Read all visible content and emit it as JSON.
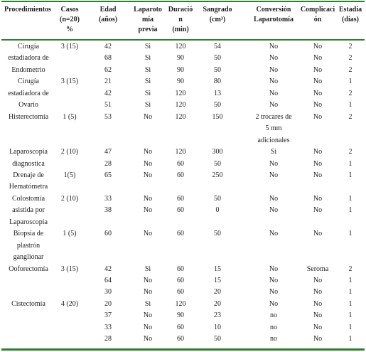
{
  "columns": [
    {
      "lines": [
        "Procedimientos"
      ]
    },
    {
      "lines": [
        "Casos",
        "(n=20)",
        "%"
      ]
    },
    {
      "lines": [
        "Edad",
        "(años)"
      ]
    },
    {
      "lines": [
        "Laparoto",
        "mía",
        "previa"
      ]
    },
    {
      "lines": [
        "Duració",
        "n",
        "(min)"
      ]
    },
    {
      "lines": [
        "Sangrado",
        "(cm³)"
      ]
    },
    {
      "lines": [
        "Conversión",
        "Laparotomía"
      ]
    },
    {
      "lines": [
        "Complicaci",
        "ón"
      ]
    },
    {
      "lines": [
        "Estadía",
        "(días)"
      ]
    }
  ],
  "rows": [
    [
      "Cirugía",
      "3 (15)",
      "42",
      "Si",
      "120",
      "54",
      "No",
      "No",
      "2"
    ],
    [
      "estadiadora de",
      "",
      "68",
      "Si",
      "90",
      "50",
      "No",
      "No",
      "2"
    ],
    [
      "Endometrio",
      "",
      "62",
      "Si",
      "90",
      "50",
      "No",
      "No",
      "2"
    ],
    [
      "Cirugía",
      "3 (15)",
      "21",
      "Si",
      "90",
      "80",
      "No",
      "No",
      "1"
    ],
    [
      "estadiadora de",
      "",
      "42",
      "Si",
      "120",
      "13",
      "No",
      "No",
      "2"
    ],
    [
      "Ovario",
      "",
      "51",
      "Si",
      "120",
      "50",
      "No",
      "No",
      "1"
    ],
    [
      "Histerectomía",
      "1 (5)",
      "53",
      "No",
      "120",
      "150",
      "2 trocares de",
      "No",
      "2"
    ],
    [
      "",
      "",
      "",
      "",
      "",
      "",
      "5 mm",
      "",
      ""
    ],
    [
      "",
      "",
      "",
      "",
      "",
      "",
      "adicionales",
      "",
      ""
    ],
    [
      "Laparoscopia",
      "2 (10)",
      "47",
      "No",
      "120",
      "300",
      "Si",
      "No",
      "2"
    ],
    [
      "diagnostica",
      "",
      "28",
      "No",
      "60",
      "50",
      "No",
      "No",
      "1"
    ],
    [
      "Drenaje de",
      "1(5)",
      "65",
      "No",
      "60",
      "250",
      "No",
      "No",
      "1"
    ],
    [
      "Hematómetra",
      "",
      "",
      "",
      "",
      "",
      "",
      "",
      ""
    ],
    [
      "Colostomía",
      "2 (10)",
      "33",
      "No",
      "60",
      "50",
      "No",
      "No",
      "1"
    ],
    [
      "asistida por",
      "",
      "38",
      "No",
      "60",
      "0",
      "No",
      "No",
      "1"
    ],
    [
      "Laparoscopia",
      "",
      "",
      "",
      "",
      "",
      "",
      "",
      ""
    ],
    [
      "Biopsia de",
      "1 (5)",
      "60",
      "No",
      "60",
      "50",
      "No",
      "No",
      "1"
    ],
    [
      "plastrón",
      "",
      "",
      "",
      "",
      "",
      "",
      "",
      ""
    ],
    [
      "ganglionar",
      "",
      "",
      "",
      "",
      "",
      "",
      "",
      ""
    ],
    [
      "Ooforectomía",
      "3 (15)",
      "42",
      "Si",
      "60",
      "15",
      "No",
      "Seroma",
      "2"
    ],
    [
      "",
      "",
      "64",
      "No",
      "60",
      "15",
      "No",
      "No",
      "1"
    ],
    [
      "",
      "",
      "30",
      "No",
      "60",
      "20",
      "No",
      "No",
      "1"
    ],
    [
      "Cistectomía",
      "4 (20)",
      "20",
      "Si",
      "120",
      "20",
      "No",
      "No",
      "1"
    ],
    [
      "",
      "",
      "37",
      "No",
      "90",
      "23",
      "no",
      "No",
      "1"
    ],
    [
      "",
      "",
      "33",
      "No",
      "60",
      "10",
      "no",
      "No",
      "1"
    ],
    [
      "",
      "",
      "28",
      "No",
      "60",
      "50",
      "no",
      "No",
      "1"
    ]
  ]
}
